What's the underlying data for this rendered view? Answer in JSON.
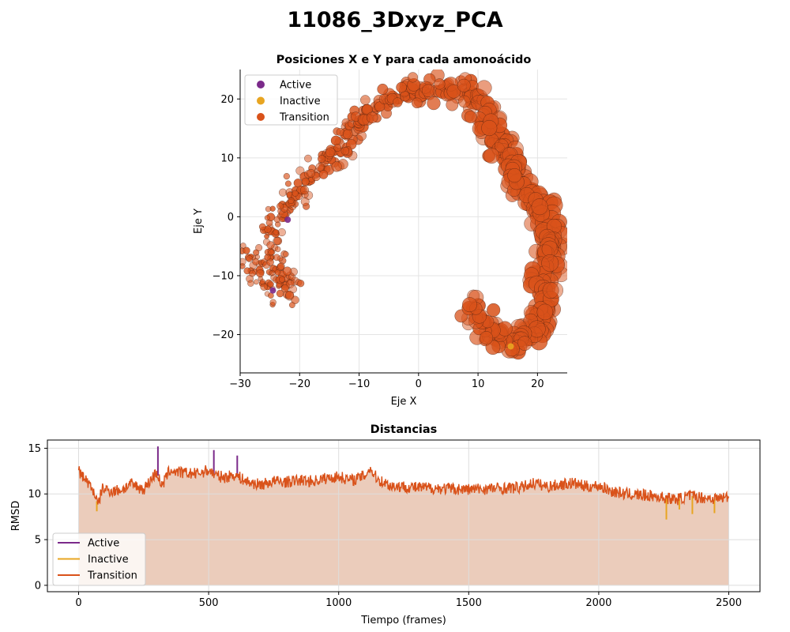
{
  "figure": {
    "title": "11086_3Dxyz_PCA"
  },
  "colors": {
    "active": "#7b2a8a",
    "inactive": "#e8a521",
    "transition": "#d9521a",
    "fill": "#e9c6b4"
  },
  "chart_data": [
    {
      "type": "scatter",
      "title": "Posiciones X e Y para cada amonoácido",
      "xlabel": "Eje X",
      "ylabel": "Eje Y",
      "xlim": [
        -30,
        25
      ],
      "ylim": [
        -26.5,
        25
      ],
      "xticks": [
        -30,
        -20,
        -10,
        0,
        10,
        20
      ],
      "yticks": [
        -20,
        -10,
        0,
        10,
        20
      ],
      "grid": true,
      "legend_position": "upper-left",
      "legend": [
        "Active",
        "Inactive",
        "Transition"
      ],
      "series": [
        {
          "name": "Active",
          "color": "#7b2a8a",
          "points": [
            [
              -22,
              -0.5
            ],
            [
              -24.5,
              -12.5
            ]
          ]
        },
        {
          "name": "Inactive",
          "color": "#e8a521",
          "points": [
            [
              15.5,
              -22
            ]
          ]
        },
        {
          "name": "Transition",
          "color": "#d9521a",
          "path": [
            [
              -29.5,
              -6
            ],
            [
              -27,
              -9
            ],
            [
              -25,
              -11.5
            ],
            [
              -22,
              -13
            ],
            [
              -25,
              -5
            ],
            [
              -24,
              -1
            ],
            [
              -23,
              2
            ],
            [
              -21,
              3
            ],
            [
              -19,
              6
            ],
            [
              -17,
              8
            ],
            [
              -15,
              9.5
            ],
            [
              -13,
              12
            ],
            [
              -11,
              15
            ],
            [
              -9,
              17
            ],
            [
              -6,
              19.5
            ],
            [
              -2,
              20.5
            ],
            [
              2,
              21.5
            ],
            [
              5,
              22
            ],
            [
              8,
              21.5
            ],
            [
              10,
              20
            ],
            [
              12,
              16
            ],
            [
              14,
              12
            ],
            [
              15.5,
              9
            ],
            [
              17,
              6
            ],
            [
              19,
              3
            ],
            [
              21,
              1
            ],
            [
              22.5,
              -1.5
            ],
            [
              22,
              -6
            ],
            [
              21,
              -10
            ],
            [
              21.5,
              -13
            ],
            [
              21,
              -17
            ],
            [
              19.5,
              -19.5
            ],
            [
              17,
              -21.5
            ],
            [
              15,
              -22.5
            ],
            [
              12,
              -19
            ],
            [
              10,
              -16
            ],
            [
              8.5,
              -15
            ]
          ]
        }
      ]
    },
    {
      "type": "line",
      "title": "Distancias",
      "xlabel": "Tiempo (frames)",
      "ylabel": "RMSD",
      "xlim": [
        -120,
        2620
      ],
      "ylim": [
        -0.7,
        15.9
      ],
      "xticks": [
        0,
        500,
        1000,
        1500,
        2000,
        2500
      ],
      "yticks": [
        0,
        5,
        10,
        15
      ],
      "grid": true,
      "legend_position": "lower-left",
      "legend": [
        "Active",
        "Inactive",
        "Transition"
      ],
      "series": [
        {
          "name": "Transition",
          "color": "#d9521a",
          "x": [
            0,
            30,
            60,
            75,
            90,
            130,
            170,
            200,
            250,
            300,
            320,
            350,
            400,
            450,
            500,
            530,
            560,
            600,
            650,
            700,
            750,
            800,
            850,
            900,
            950,
            1000,
            1050,
            1100,
            1120,
            1150,
            1200,
            1300,
            1400,
            1500,
            1600,
            1700,
            1750,
            1800,
            1850,
            1900,
            1950,
            2000,
            2050,
            2100,
            2150,
            2200,
            2250,
            2300,
            2350,
            2400,
            2450,
            2500
          ],
          "y": [
            12.5,
            11.5,
            10.2,
            8.7,
            10.6,
            10.3,
            10.5,
            11.1,
            10.5,
            12.4,
            10.8,
            12.6,
            12.3,
            12.2,
            12.6,
            12.0,
            11.8,
            12.1,
            11.3,
            11.0,
            11.4,
            11.3,
            11.5,
            11.4,
            11.7,
            11.9,
            11.5,
            12.0,
            12.8,
            11.6,
            10.9,
            10.7,
            10.6,
            10.5,
            10.6,
            10.7,
            11.2,
            10.8,
            11.0,
            11.2,
            10.8,
            10.9,
            10.3,
            10.0,
            9.9,
            9.8,
            9.6,
            9.4,
            9.8,
            9.6,
            9.5,
            9.7
          ]
        },
        {
          "name": "Active",
          "color": "#7b2a8a",
          "x": [
            305,
            520,
            610
          ],
          "y": [
            15.2,
            14.8,
            14.2
          ]
        },
        {
          "name": "Inactive",
          "color": "#e8a521",
          "x": [
            70,
            2260,
            2310,
            2360,
            2445
          ],
          "y": [
            8.1,
            7.2,
            8.3,
            7.8,
            7.9
          ]
        }
      ]
    }
  ]
}
